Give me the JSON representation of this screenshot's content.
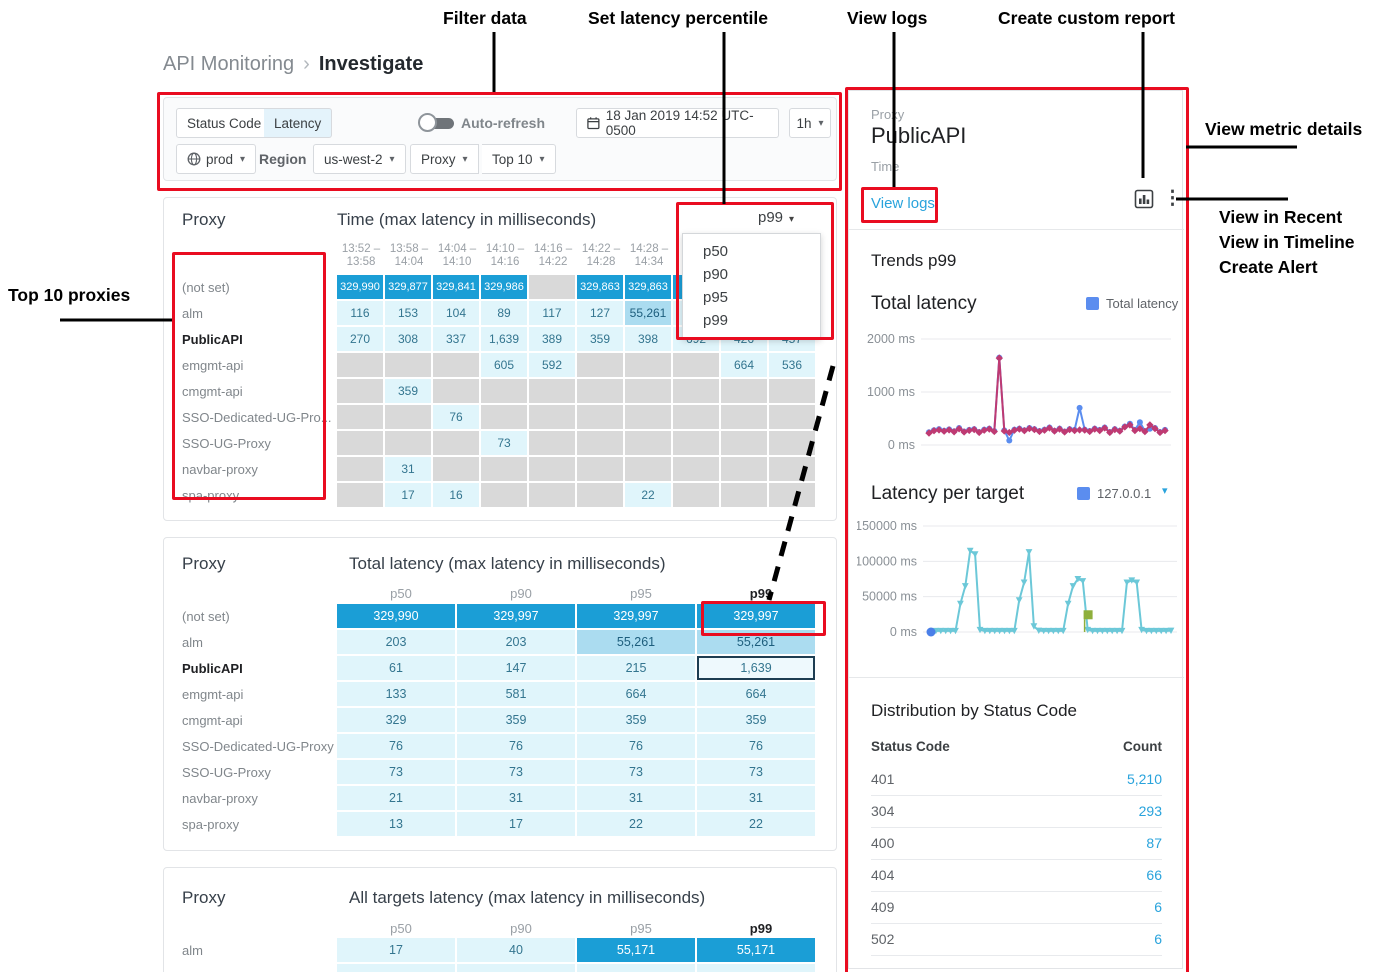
{
  "annotations": {
    "filter_data": "Filter data",
    "set_latency_percentile": "Set latency percentile",
    "view_logs": "View logs",
    "create_custom_report": "Create custom report",
    "view_metric_details": "View metric details",
    "view_in_recent": "View in Recent",
    "view_in_timeline": "View in Timeline",
    "create_alert": "Create Alert",
    "top_10_proxies": "Top 10 proxies"
  },
  "breadcrumb": {
    "root": "API Monitoring",
    "separator": "›",
    "current": "Investigate"
  },
  "filter_bar": {
    "status_code_label": "Status Code",
    "latency_label": "Latency",
    "auto_refresh_label": "Auto-refresh",
    "datetime": "18 Jan 2019 14:52 UTC-0500",
    "range": "1h",
    "environment": "prod",
    "region_label": "Region",
    "region": "us-west-2",
    "proxy_label": "Proxy",
    "top_label": "Top 10",
    "caret": "▾"
  },
  "time_matrix": {
    "proxy_header": "Proxy",
    "title": "Time (max latency in milliseconds)",
    "percentile_selected": "p99",
    "percentile_options": [
      "p50",
      "p90",
      "p95",
      "p99"
    ],
    "time_columns": [
      "13:52 –|13:58",
      "13:58 –|14:04",
      "14:04 –|14:10",
      "14:10 –|14:16",
      "14:16 –|14:22",
      "14:22 –|14:28",
      "14:28 –|14:34",
      "|",
      "|",
      "|"
    ],
    "rows": [
      {
        "proxy": "(not set)",
        "bold": false,
        "cells": [
          "d:329,990",
          "d:329,877",
          "d:329,841",
          "d:329,986",
          "e:",
          "d:329,863",
          "d:329,863",
          "d:",
          "d:",
          "d:"
        ]
      },
      {
        "proxy": "alm",
        "bold": false,
        "cells": [
          "l:116",
          "l:153",
          "l:104",
          "l:89",
          "l:117",
          "l:127",
          "m:55,261",
          "l:",
          "l:",
          "l:"
        ]
      },
      {
        "proxy": "PublicAPI",
        "bold": true,
        "cells": [
          "l:270",
          "l:308",
          "l:337",
          "l:1,639",
          "l:389",
          "l:359",
          "l:398",
          "l:692",
          "l:426",
          "l:457"
        ]
      },
      {
        "proxy": "emgmt-api",
        "bold": false,
        "cells": [
          "e:",
          "e:",
          "e:",
          "l:605",
          "l:592",
          "e:",
          "e:",
          "e:",
          "l:664",
          "l:536"
        ]
      },
      {
        "proxy": "cmgmt-api",
        "bold": false,
        "cells": [
          "e:",
          "l:359",
          "e:",
          "e:",
          "e:",
          "e:",
          "e:",
          "e:",
          "e:",
          "e:"
        ]
      },
      {
        "proxy": "SSO-Dedicated-UG-Pro...",
        "bold": false,
        "cells": [
          "e:",
          "e:",
          "l:76",
          "e:",
          "e:",
          "e:",
          "e:",
          "e:",
          "e:",
          "e:"
        ]
      },
      {
        "proxy": "SSO-UG-Proxy",
        "bold": false,
        "cells": [
          "e:",
          "e:",
          "e:",
          "l:73",
          "e:",
          "e:",
          "e:",
          "e:",
          "e:",
          "e:"
        ]
      },
      {
        "proxy": "navbar-proxy",
        "bold": false,
        "cells": [
          "e:",
          "l:31",
          "e:",
          "e:",
          "e:",
          "e:",
          "e:",
          "e:",
          "e:",
          "e:"
        ]
      },
      {
        "proxy": "spa-proxy",
        "bold": false,
        "cells": [
          "e:",
          "l:17",
          "l:16",
          "e:",
          "e:",
          "e:",
          "l:22",
          "e:",
          "e:",
          "e:"
        ]
      }
    ]
  },
  "total_latency_table": {
    "proxy_header": "Proxy",
    "title": "Total latency (max latency in milliseconds)",
    "columns": [
      "p50",
      "p90",
      "p95",
      "p99"
    ],
    "rows": [
      {
        "proxy": "(not set)",
        "bold": false,
        "cells": [
          "d:329,990",
          "d:329,997",
          "d:329,997",
          "d:329,997"
        ]
      },
      {
        "proxy": "alm",
        "bold": false,
        "cells": [
          "l:203",
          "l:203",
          "m:55,261",
          "m:55,261"
        ]
      },
      {
        "proxy": "PublicAPI",
        "bold": true,
        "cells": [
          "l:61",
          "l:147",
          "l:215",
          "l:1,639"
        ],
        "selected": 3
      },
      {
        "proxy": "emgmt-api",
        "bold": false,
        "cells": [
          "l:133",
          "l:581",
          "l:664",
          "l:664"
        ]
      },
      {
        "proxy": "cmgmt-api",
        "bold": false,
        "cells": [
          "l:329",
          "l:359",
          "l:359",
          "l:359"
        ]
      },
      {
        "proxy": "SSO-Dedicated-UG-Proxy",
        "bold": false,
        "cells": [
          "l:76",
          "l:76",
          "l:76",
          "l:76"
        ]
      },
      {
        "proxy": "SSO-UG-Proxy",
        "bold": false,
        "cells": [
          "l:73",
          "l:73",
          "l:73",
          "l:73"
        ]
      },
      {
        "proxy": "navbar-proxy",
        "bold": false,
        "cells": [
          "l:21",
          "l:31",
          "l:31",
          "l:31"
        ]
      },
      {
        "proxy": "spa-proxy",
        "bold": false,
        "cells": [
          "l:13",
          "l:17",
          "l:22",
          "l:22"
        ]
      }
    ]
  },
  "all_targets_table": {
    "proxy_header": "Proxy",
    "title": "All targets latency (max latency in milliseconds)",
    "columns": [
      "p50",
      "p90",
      "p95",
      "p99"
    ],
    "rows": [
      {
        "proxy": "alm",
        "bold": false,
        "cells": [
          "l:17",
          "l:40",
          "d:55,171",
          "d:55,171"
        ]
      },
      {
        "proxy": "",
        "bold": false,
        "cells": [
          "l:",
          "l:",
          "l:",
          "l:"
        ]
      }
    ]
  },
  "detail_panel": {
    "proxy_label": "Proxy",
    "proxy_value": "PublicAPI",
    "time_label": "Time",
    "view_logs": "View logs",
    "trends_title": "Trends p99",
    "distribution": {
      "title": "Distribution by Status Code",
      "col_code": "Status Code",
      "col_count": "Count",
      "rows": [
        [
          "401",
          "5,210"
        ],
        [
          "304",
          "293"
        ],
        [
          "400",
          "87"
        ],
        [
          "404",
          "66"
        ],
        [
          "409",
          "6"
        ],
        [
          "502",
          "6"
        ]
      ]
    }
  },
  "chart_data": [
    {
      "id": "c1",
      "type": "line",
      "title": "Total latency",
      "legend": [
        "Total latency"
      ],
      "legend_color": "#5b8def",
      "ylim": [
        0,
        2000
      ],
      "gridlines": [
        {
          "value": 0,
          "label": "0 ms"
        },
        {
          "value": 1000,
          "label": "1000 ms"
        },
        {
          "value": 2000,
          "label": "2000 ms"
        }
      ],
      "series": [
        {
          "name": "Total latency (blue)",
          "color": "#5b8def",
          "marker": "circle",
          "values": [
            240,
            280,
            300,
            270,
            295,
            260,
            320,
            255,
            285,
            300,
            245,
            290,
            310,
            265,
            1650,
            275,
            85,
            290,
            310,
            280,
            320,
            300,
            265,
            290,
            330,
            270,
            310,
            255,
            300,
            285,
            700,
            290,
            265,
            310,
            285,
            330,
            245,
            300,
            270,
            350,
            400,
            285,
            430,
            265,
            305,
            320,
            245,
            285
          ]
        },
        {
          "name": "Total latency (magenta)",
          "color": "#bf3a72",
          "marker": "diamond",
          "values": [
            225,
            270,
            285,
            260,
            285,
            250,
            305,
            245,
            275,
            290,
            235,
            280,
            300,
            255,
            1640,
            265,
            235,
            280,
            300,
            270,
            310,
            290,
            255,
            280,
            320,
            262,
            300,
            246,
            290,
            272,
            285,
            282,
            255,
            300,
            272,
            320,
            235,
            290,
            262,
            340,
            380,
            272,
            310,
            252,
            380,
            310,
            235,
            272
          ]
        }
      ]
    },
    {
      "id": "c2",
      "type": "line",
      "title": "Latency per target",
      "legend": [
        "127.0.0.1"
      ],
      "legend_color": "#5b8def",
      "ylim": [
        0,
        150000
      ],
      "gridlines": [
        {
          "value": 0,
          "label": "0 ms"
        },
        {
          "value": 50000,
          "label": "50000 ms"
        },
        {
          "value": 100000,
          "label": "100000 ms"
        },
        {
          "value": 150000,
          "label": "150000 ms"
        }
      ],
      "series": [
        {
          "name": "127.0.0.1",
          "color": "#6cc8d8",
          "marker": "triangle-down",
          "values": [
            0,
            1500,
            1500,
            1500,
            1500,
            1500,
            40000,
            65000,
            115000,
            110000,
            3000,
            1500,
            1500,
            1500,
            1500,
            1500,
            1500,
            1500,
            45000,
            70000,
            113000,
            8000,
            2000,
            1500,
            1500,
            1500,
            1500,
            1500,
            40000,
            65000,
            75000,
            72000,
            3000,
            1500,
            1500,
            1500,
            1500,
            1500,
            1500,
            1500,
            70000,
            73000,
            70000,
            3000,
            1500,
            1500,
            1500,
            1500,
            1500,
            2000
          ]
        }
      ],
      "extras": [
        {
          "type": "start-dot",
          "color": "#4a7fe8"
        },
        {
          "type": "flag",
          "color": "#8faf3c",
          "x_frac": 0.64,
          "value": 18000
        }
      ]
    }
  ]
}
